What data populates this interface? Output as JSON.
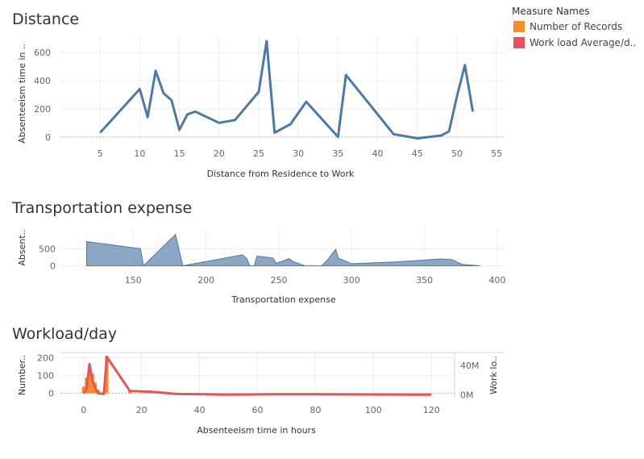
{
  "legend": {
    "title": "Measure Names",
    "items": [
      {
        "label": "Number of Records",
        "color": "#f28e2b"
      },
      {
        "label": "Work load Average/d..",
        "color": "#e15759"
      }
    ]
  },
  "chart_data": [
    {
      "type": "line",
      "title": "Distance",
      "xlabel": "Distance from Residence to Work",
      "ylabel": "Absenteeism time in ..",
      "color": "#4e79a7",
      "xlim": [
        0,
        56
      ],
      "ylim": [
        -30,
        720
      ],
      "xticks": [
        5,
        10,
        15,
        20,
        25,
        30,
        35,
        40,
        45,
        50,
        55
      ],
      "yticks": [
        0,
        200,
        400,
        600
      ],
      "x": [
        5,
        10,
        11,
        12,
        13,
        14,
        15,
        16,
        17,
        20,
        22,
        25,
        26,
        27,
        29,
        31,
        35,
        36,
        42,
        45,
        48,
        49,
        50,
        51,
        52
      ],
      "y": [
        30,
        340,
        140,
        470,
        310,
        260,
        50,
        160,
        180,
        100,
        120,
        320,
        680,
        30,
        90,
        250,
        0,
        440,
        20,
        -10,
        10,
        40,
        290,
        510,
        180
      ]
    },
    {
      "type": "area",
      "title": "Transportation expense",
      "xlabel": "Transportation expense",
      "ylabel": "Absent..",
      "color": "#4e79a7",
      "xlim": [
        100,
        405
      ],
      "ylim": [
        -60,
        1100
      ],
      "xticks": [
        150,
        200,
        250,
        300,
        350,
        400
      ],
      "yticks": [
        0,
        500
      ],
      "x": [
        118,
        155,
        157,
        179,
        184,
        225,
        228,
        230,
        233,
        235,
        246,
        248,
        252,
        257,
        260,
        268,
        279,
        282,
        289,
        291,
        294,
        300,
        330,
        361,
        369,
        376,
        388
      ],
      "y": [
        710,
        500,
        0,
        920,
        0,
        320,
        210,
        0,
        0,
        280,
        230,
        70,
        130,
        210,
        120,
        0,
        0,
        100,
        480,
        210,
        170,
        60,
        110,
        200,
        180,
        40,
        0
      ]
    },
    {
      "type": "bar",
      "title": "Workload/day",
      "xlabel": "Absenteeism time in hours",
      "ylabel": "Number..",
      "color": "#f28e2b",
      "xlim": [
        -8,
        128
      ],
      "ylim": [
        -20,
        230
      ],
      "xticks": [
        0,
        20,
        40,
        60,
        80,
        100,
        120
      ],
      "yticks": [
        0,
        100,
        200
      ],
      "bars": [
        {
          "x": 0,
          "value": 38
        },
        {
          "x": 1,
          "value": 90
        },
        {
          "x": 2,
          "value": 160
        },
        {
          "x": 3,
          "value": 110
        },
        {
          "x": 4,
          "value": 60
        },
        {
          "x": 5,
          "value": 20
        },
        {
          "x": 7,
          "value": 2
        },
        {
          "x": 8,
          "value": 210
        },
        {
          "x": 16,
          "value": 18
        },
        {
          "x": 24,
          "value": 12
        }
      ],
      "series": [
        {
          "name": "Work load Average/d..",
          "color": "#e15759",
          "ylabel": "Work lo..",
          "ylim": [
            -3000000,
            58000000
          ],
          "yticks": [
            0,
            40000000
          ],
          "ytick_labels": [
            "0M",
            "40M"
          ],
          "x": [
            0,
            1,
            2,
            3,
            4,
            5,
            7,
            8,
            16,
            24,
            32,
            40,
            48,
            56,
            64,
            80,
            120
          ],
          "y": [
            2000000,
            8000000,
            42000000,
            20000000,
            9000000,
            2000000,
            1000000,
            52000000,
            5000000,
            4000000,
            1000000,
            800000,
            0,
            200000,
            500000,
            500000,
            0
          ]
        }
      ]
    }
  ]
}
